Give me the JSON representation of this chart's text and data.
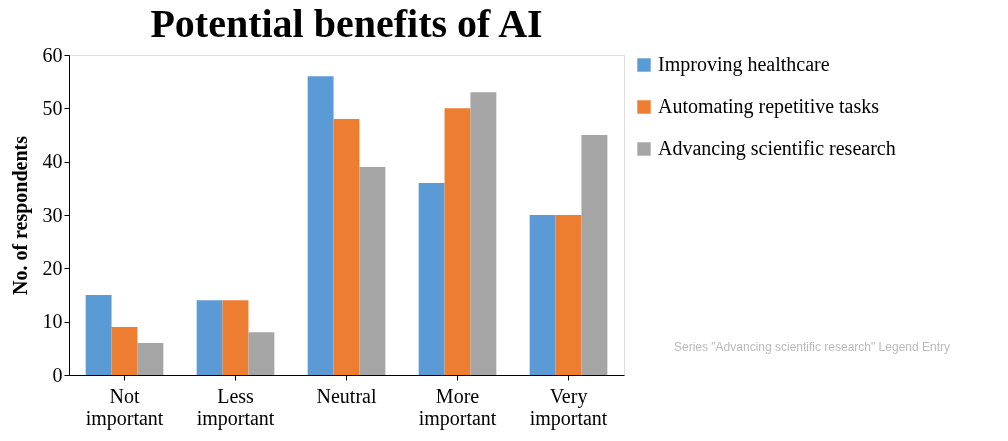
{
  "chart_data": {
    "type": "bar",
    "title": "Potential benefits of AI",
    "ylabel": "No. of respondents",
    "categories": [
      "Not important",
      "Less important",
      "Neutral",
      "More important",
      "Very important"
    ],
    "series": [
      {
        "name": "Improving healthcare",
        "color": "#5b9bd5",
        "values": [
          15,
          14,
          56,
          36,
          30
        ]
      },
      {
        "name": "Automating repetitive tasks",
        "color": "#ed7d31",
        "values": [
          9,
          14,
          48,
          50,
          30
        ]
      },
      {
        "name": "Advancing scientific research",
        "color": "#a5a5a5",
        "values": [
          6,
          8,
          39,
          53,
          45
        ]
      }
    ],
    "ylim": [
      0,
      60
    ],
    "yticks": [
      0,
      10,
      20,
      30,
      40,
      50,
      60
    ],
    "grid": false,
    "legend": "right",
    "annotations": [
      "Series \"Advancing scientific research\" Legend Entry"
    ]
  }
}
